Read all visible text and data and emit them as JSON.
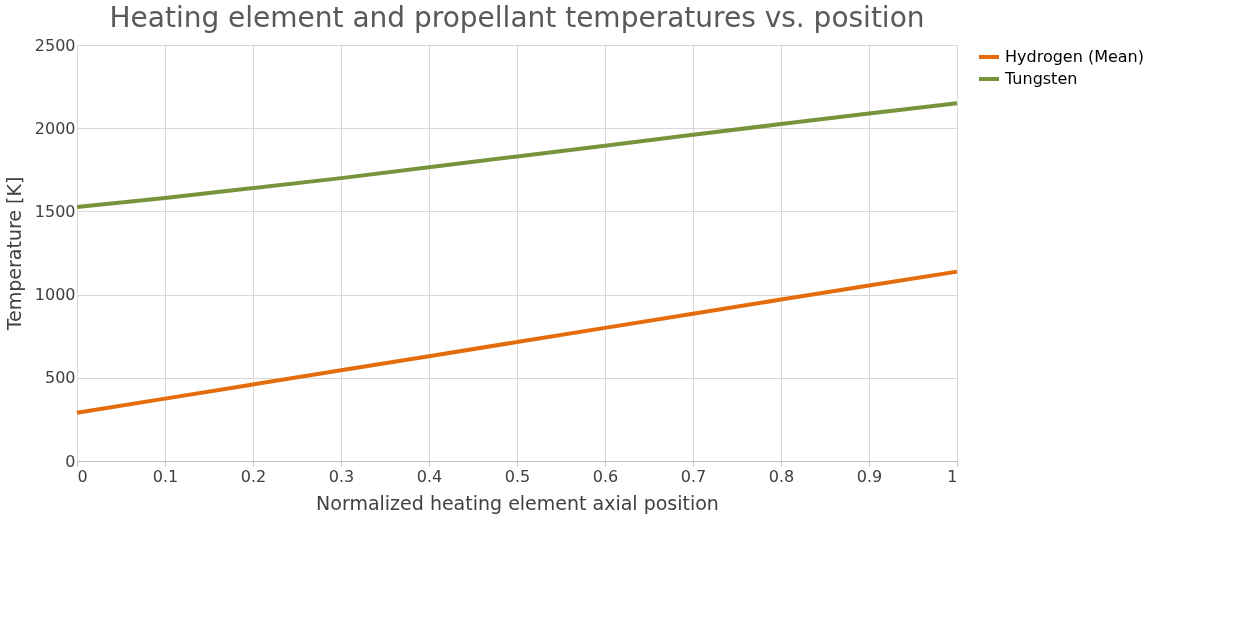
{
  "chart_data": {
    "type": "line",
    "title": "Heating element and propellant temperatures vs. position",
    "xlabel": "Normalized heating element axial position",
    "ylabel": "Temperature [K]",
    "x": [
      0,
      0.1,
      0.2,
      0.3,
      0.4,
      0.5,
      0.6,
      0.7,
      0.8,
      0.9,
      1
    ],
    "series": [
      {
        "name": "Hydrogen (Mean)",
        "color": "#e46c0a",
        "values": [
          290,
          375,
          460,
          545,
          630,
          715,
          800,
          885,
          970,
          1055,
          1138
        ]
      },
      {
        "name": "Tungsten",
        "color": "#77933c",
        "values": [
          1526,
          1580,
          1640,
          1700,
          1765,
          1830,
          1895,
          1960,
          2025,
          2088,
          2150
        ]
      }
    ],
    "xlim": [
      0,
      1
    ],
    "xticks": [
      0,
      0.1,
      0.2,
      0.3,
      0.4,
      0.5,
      0.6,
      0.7,
      0.8,
      0.9,
      1
    ],
    "ylim": [
      0,
      2500
    ],
    "yticks": [
      0,
      500,
      1000,
      1500,
      2000,
      2500
    ],
    "grid": true,
    "legend": "right",
    "marker": "none",
    "line_style": "solid"
  }
}
